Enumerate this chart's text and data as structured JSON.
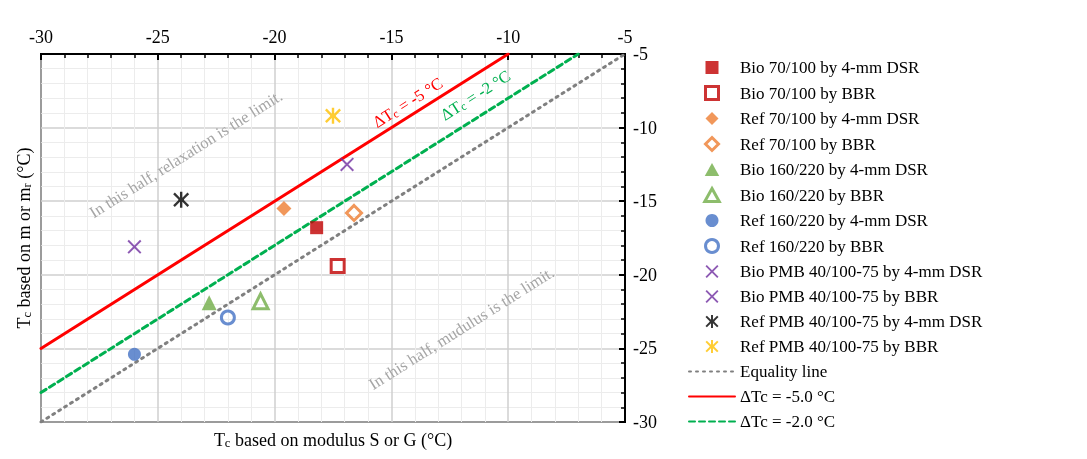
{
  "chart_data": {
    "type": "scatter",
    "xlabel": "T$_{c}$ based on modulus S or G (°C)",
    "ylabel": "T$_{c}$ based on m or m$_{r}$ (°C)",
    "xlim": [
      -30,
      -5
    ],
    "xticks": [
      -30,
      -25,
      -20,
      -15,
      -10,
      -5
    ],
    "ylim": [
      -30,
      -5
    ],
    "yticks": [
      -30,
      -25,
      -20,
      -15,
      -10,
      -5
    ],
    "grid": true,
    "legend": "right",
    "series": [
      {
        "name": "Bio 70/100 by 4-mm DSR",
        "color": "#c00000",
        "marker": "square",
        "x": [
          -18.2
        ],
        "values": [
          -16.8
        ]
      },
      {
        "name": "Bio 70/100 by BBR",
        "color": "#c00000",
        "marker": "square-open",
        "x": [
          -17.3
        ],
        "values": [
          -19.4
        ]
      },
      {
        "name": "Ref 70/100 by 4-mm DSR",
        "color": "#ed7d31",
        "marker": "diamond",
        "x": [
          -19.6
        ],
        "values": [
          -15.5
        ]
      },
      {
        "name": "Ref 70/100 by BBR",
        "color": "#ed7d31",
        "marker": "diamond-open",
        "x": [
          -16.6
        ],
        "values": [
          -15.8
        ]
      },
      {
        "name": "Bio 160/220 by 4-mm DSR",
        "color": "#70ad47",
        "marker": "triangle",
        "x": [
          -22.8
        ],
        "values": [
          -21.9
        ]
      },
      {
        "name": "Bio 160/220 by BBR",
        "color": "#70ad47",
        "marker": "triangle-open",
        "x": [
          -20.6
        ],
        "values": [
          -21.8
        ]
      },
      {
        "name": "Ref 160/220 by 4-mm DSR",
        "color": "#4472c4",
        "marker": "circle",
        "x": [
          -26.0
        ],
        "values": [
          -25.4
        ]
      },
      {
        "name": "Ref 160/220 by BBR",
        "color": "#4472c4",
        "marker": "circle-open",
        "x": [
          -22.0
        ],
        "values": [
          -22.9
        ]
      },
      {
        "name": "Bio PMB 40/100-75 by 4-mm DSR",
        "color": "#7030a0",
        "marker": "cross",
        "x": [
          -26.0
        ],
        "values": [
          -18.1
        ]
      },
      {
        "name": "Bio PMB 40/100-75 by BBR",
        "color": "#7030a0",
        "marker": "cross",
        "x": [
          -16.9
        ],
        "values": [
          -12.5
        ]
      },
      {
        "name": "Ref PMB 40/100-75 by 4-mm DSR",
        "color": "#000000",
        "marker": "star",
        "x": [
          -24.0
        ],
        "values": [
          -14.9
        ]
      },
      {
        "name": "Ref PMB 40/100-75 by BBR",
        "color": "#ffc000",
        "marker": "star",
        "x": [
          -17.5
        ],
        "values": [
          -9.2
        ]
      },
      {
        "name": "Equality line",
        "type": "line",
        "color": "#808080",
        "marker": "none",
        "line_style": "dotted",
        "x": [
          -30,
          -5
        ],
        "values": [
          -30,
          -5
        ]
      },
      {
        "name": "ΔTc = -5.0 °C",
        "type": "line",
        "color": "#ff0000",
        "marker": "none",
        "line_style": "solid",
        "x": [
          -30,
          -10
        ],
        "values": [
          -25,
          -5
        ]
      },
      {
        "name": "ΔTc = -2.0 °C",
        "type": "line",
        "color": "#00b050",
        "marker": "none",
        "line_style": "dashed",
        "x": [
          -30,
          -7
        ],
        "values": [
          -28,
          -5
        ]
      }
    ],
    "annotations": [
      "ΔT$_{c}$ = -5 °C",
      "ΔT$_{c}$ = -2 °C",
      "In this half, relaxation is the limit.",
      "In this half, mudulus is the limit."
    ]
  }
}
